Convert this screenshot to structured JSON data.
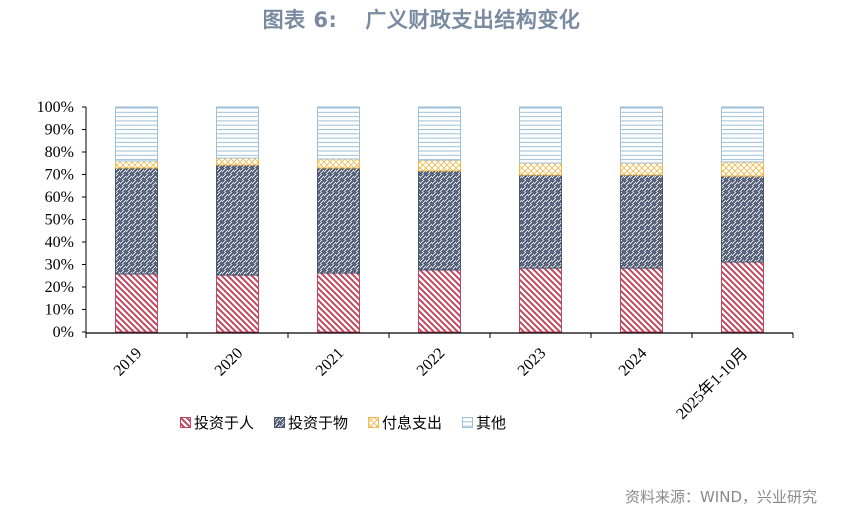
{
  "header": {
    "figure_label": "图表 6:",
    "title": "广义财政支出结构变化"
  },
  "footer": {
    "source": "资料来源：WIND，兴业研究"
  },
  "colors": {
    "invest_people": "#c0485e",
    "invest_things": "#4a5670",
    "interest": "#f0b84a",
    "other": "#9dbfd8",
    "axis": "#000000",
    "title": "#7a8aa0",
    "source": "#8a8a8a"
  },
  "chart_data": {
    "type": "bar",
    "stacked": true,
    "percent": true,
    "title": "图表 6: 广义财政支出结构变化",
    "xlabel": "",
    "ylabel": "",
    "ylim": [
      0,
      100
    ],
    "yticks": [
      "0%",
      "10%",
      "20%",
      "30%",
      "40%",
      "50%",
      "60%",
      "70%",
      "80%",
      "90%",
      "100%"
    ],
    "categories": [
      "2019",
      "2020",
      "2021",
      "2022",
      "2023",
      "2024",
      "2025年1-10月"
    ],
    "series": [
      {
        "name": "投资于人",
        "pattern": "diagonal-down",
        "color": "#c0485e",
        "values": [
          25.8,
          25.3,
          26.2,
          27.6,
          28.4,
          28.4,
          31.1
        ]
      },
      {
        "name": "投资于物",
        "pattern": "diagonal-up",
        "color": "#4a5670",
        "values": [
          47.1,
          48.9,
          46.7,
          44.0,
          41.4,
          41.4,
          38.2
        ]
      },
      {
        "name": "付息支出",
        "pattern": "crosshatch",
        "color": "#f0b84a",
        "values": [
          3.1,
          3.1,
          4.0,
          4.8,
          5.3,
          5.3,
          6.3
        ]
      },
      {
        "name": "其他",
        "pattern": "horizontal",
        "color": "#9dbfd8",
        "values": [
          24.0,
          22.7,
          23.1,
          23.6,
          24.9,
          24.9,
          24.4
        ]
      }
    ],
    "legend_position": "bottom",
    "grid": false
  }
}
